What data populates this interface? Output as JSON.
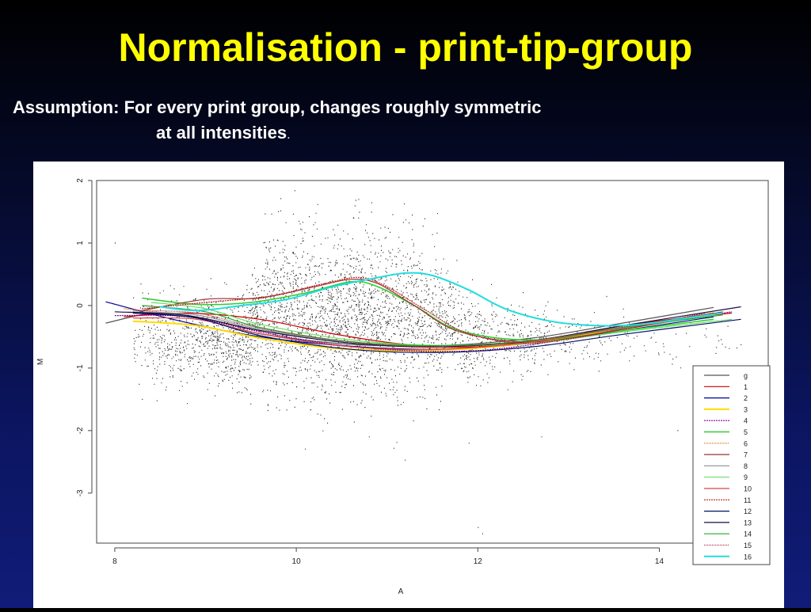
{
  "slide": {
    "title": "Normalisation - print-tip-group",
    "assumption_label": "Assumption:",
    "assumption_line1": "For every print group, changes roughly symmetric",
    "assumption_line2": "at all intensities",
    "assumption_period": "."
  },
  "colors": {
    "title": "#ffff00",
    "text": "#ffffff",
    "background": "#0b1560",
    "plot_background": "#ffffff"
  },
  "chart_data": {
    "type": "scatter",
    "title": "",
    "xlabel": "A",
    "ylabel": "M",
    "xlim": [
      7.8,
      15.2
    ],
    "ylim": [
      -3.8,
      2.0
    ],
    "x_ticks": [
      8,
      10,
      12,
      14
    ],
    "y_ticks": [
      -3,
      -2,
      -1,
      0,
      1,
      2
    ],
    "grid": false,
    "legend_placement": "bottom-right",
    "point_cloud": "approximately 4000 (A, M) spots, densest around A 9–12 and M -1 to 1",
    "series": [
      {
        "name": "g",
        "color": "#555555",
        "dash": "",
        "width": 1.2,
        "points": [
          [
            7.9,
            -0.28
          ],
          [
            8.6,
            -0.12
          ],
          [
            9.6,
            -0.45
          ],
          [
            10.6,
            -0.62
          ],
          [
            11.6,
            -0.64
          ],
          [
            12.6,
            -0.52
          ],
          [
            13.6,
            -0.28
          ],
          [
            14.6,
            -0.03
          ]
        ]
      },
      {
        "name": "1",
        "color": "#cc0000",
        "dash": "",
        "width": 1.2,
        "points": [
          [
            8.1,
            -0.18
          ],
          [
            8.8,
            -0.12
          ],
          [
            9.6,
            -0.22
          ],
          [
            10.4,
            -0.45
          ],
          [
            11.2,
            -0.62
          ],
          [
            12.0,
            -0.66
          ],
          [
            12.8,
            -0.52
          ],
          [
            13.8,
            -0.28
          ],
          [
            14.8,
            -0.12
          ]
        ]
      },
      {
        "name": "2",
        "color": "#000099",
        "dash": "",
        "width": 1.2,
        "points": [
          [
            7.9,
            0.06
          ],
          [
            8.7,
            -0.24
          ],
          [
            9.6,
            -0.5
          ],
          [
            10.6,
            -0.65
          ],
          [
            11.6,
            -0.7
          ],
          [
            12.6,
            -0.6
          ],
          [
            13.6,
            -0.4
          ],
          [
            14.6,
            -0.18
          ]
        ]
      },
      {
        "name": "3",
        "color": "#ffdd00",
        "dash": "",
        "width": 2.0,
        "points": [
          [
            8.2,
            -0.25
          ],
          [
            8.9,
            -0.32
          ],
          [
            9.6,
            -0.52
          ],
          [
            10.4,
            -0.68
          ],
          [
            11.2,
            -0.72
          ],
          [
            12.0,
            -0.68
          ],
          [
            12.8,
            -0.55
          ],
          [
            13.8,
            -0.32
          ],
          [
            14.6,
            -0.12
          ]
        ]
      },
      {
        "name": "4",
        "color": "#880088",
        "dash": "2,1",
        "width": 1.2,
        "points": [
          [
            8.0,
            -0.16
          ],
          [
            8.8,
            -0.18
          ],
          [
            9.6,
            -0.42
          ],
          [
            10.4,
            -0.62
          ],
          [
            11.2,
            -0.72
          ],
          [
            12.0,
            -0.72
          ],
          [
            12.8,
            -0.58
          ],
          [
            13.8,
            -0.32
          ],
          [
            14.8,
            -0.1
          ]
        ]
      },
      {
        "name": "5",
        "color": "#33cc33",
        "dash": "",
        "width": 1.6,
        "points": [
          [
            8.3,
            0.12
          ],
          [
            8.9,
            0.02
          ],
          [
            9.5,
            0.05
          ],
          [
            10.1,
            0.2
          ],
          [
            10.6,
            0.38
          ],
          [
            10.9,
            0.3
          ],
          [
            11.3,
            0.0
          ],
          [
            11.8,
            -0.4
          ],
          [
            12.6,
            -0.55
          ],
          [
            13.6,
            -0.4
          ],
          [
            14.6,
            -0.22
          ]
        ]
      },
      {
        "name": "6",
        "color": "#cc6600",
        "dash": "1,1",
        "width": 1.2,
        "points": [
          [
            8.1,
            -0.05
          ],
          [
            8.9,
            -0.18
          ],
          [
            9.6,
            -0.4
          ],
          [
            10.6,
            -0.6
          ],
          [
            11.6,
            -0.68
          ],
          [
            12.6,
            -0.6
          ],
          [
            13.6,
            -0.38
          ],
          [
            14.6,
            -0.15
          ]
        ]
      },
      {
        "name": "7",
        "color": "#993333",
        "dash": "",
        "width": 1.2,
        "points": [
          [
            8.3,
            -0.08
          ],
          [
            9.0,
            0.1
          ],
          [
            9.6,
            0.12
          ],
          [
            10.2,
            0.3
          ],
          [
            10.6,
            0.42
          ],
          [
            10.9,
            0.35
          ],
          [
            11.3,
            0.0
          ],
          [
            11.8,
            -0.42
          ],
          [
            12.6,
            -0.58
          ],
          [
            13.6,
            -0.38
          ],
          [
            14.7,
            -0.1
          ]
        ]
      },
      {
        "name": "8",
        "color": "#999999",
        "dash": "",
        "width": 1.2,
        "points": [
          [
            8.2,
            -0.1
          ],
          [
            8.9,
            -0.15
          ],
          [
            9.6,
            -0.38
          ],
          [
            10.6,
            -0.58
          ],
          [
            11.6,
            -0.64
          ],
          [
            12.6,
            -0.56
          ],
          [
            13.6,
            -0.36
          ],
          [
            14.6,
            -0.14
          ]
        ]
      },
      {
        "name": "9",
        "color": "#66dd66",
        "dash": "",
        "width": 1.2,
        "points": [
          [
            8.4,
            0.05
          ],
          [
            9.0,
            -0.05
          ],
          [
            9.6,
            -0.3
          ],
          [
            10.6,
            -0.55
          ],
          [
            11.6,
            -0.64
          ],
          [
            12.6,
            -0.6
          ],
          [
            13.6,
            -0.42
          ],
          [
            14.8,
            -0.22
          ]
        ]
      },
      {
        "name": "10",
        "color": "#dd4444",
        "dash": "",
        "width": 1.2,
        "points": [
          [
            8.2,
            -0.2
          ],
          [
            8.9,
            -0.22
          ],
          [
            9.6,
            -0.45
          ],
          [
            10.6,
            -0.66
          ],
          [
            11.6,
            -0.7
          ],
          [
            12.6,
            -0.58
          ],
          [
            13.6,
            -0.35
          ],
          [
            14.6,
            -0.12
          ]
        ]
      },
      {
        "name": "11",
        "color": "#bb2222",
        "dash": "2,1",
        "width": 1.2,
        "points": [
          [
            8.3,
            -0.05
          ],
          [
            9.0,
            0.05
          ],
          [
            9.7,
            0.15
          ],
          [
            10.3,
            0.35
          ],
          [
            10.7,
            0.45
          ],
          [
            11.0,
            0.3
          ],
          [
            11.4,
            -0.05
          ],
          [
            11.9,
            -0.45
          ],
          [
            12.6,
            -0.6
          ],
          [
            13.6,
            -0.38
          ],
          [
            14.5,
            -0.12
          ]
        ]
      },
      {
        "name": "12",
        "color": "#001166",
        "dash": "",
        "width": 1.2,
        "points": [
          [
            8.2,
            -0.12
          ],
          [
            8.9,
            -0.2
          ],
          [
            9.6,
            -0.48
          ],
          [
            10.6,
            -0.7
          ],
          [
            11.6,
            -0.75
          ],
          [
            12.6,
            -0.66
          ],
          [
            13.6,
            -0.46
          ],
          [
            14.9,
            -0.22
          ]
        ]
      },
      {
        "name": "13",
        "color": "#111144",
        "dash": "",
        "width": 1.2,
        "points": [
          [
            8.0,
            -0.1
          ],
          [
            8.8,
            -0.16
          ],
          [
            9.6,
            -0.4
          ],
          [
            10.6,
            -0.6
          ],
          [
            11.6,
            -0.66
          ],
          [
            12.6,
            -0.56
          ],
          [
            13.6,
            -0.32
          ],
          [
            14.9,
            -0.02
          ]
        ]
      },
      {
        "name": "14",
        "color": "#22aa22",
        "dash": "",
        "width": 1.2,
        "points": [
          [
            8.3,
            0.0
          ],
          [
            9.0,
            -0.1
          ],
          [
            9.6,
            -0.35
          ],
          [
            10.6,
            -0.58
          ],
          [
            11.6,
            -0.64
          ],
          [
            12.6,
            -0.56
          ],
          [
            13.6,
            -0.35
          ],
          [
            14.7,
            -0.15
          ]
        ]
      },
      {
        "name": "15",
        "color": "#aa3355",
        "dash": "1,1",
        "width": 1.2,
        "points": [
          [
            8.2,
            -0.08
          ],
          [
            8.9,
            -0.12
          ],
          [
            9.6,
            -0.36
          ],
          [
            10.6,
            -0.58
          ],
          [
            11.6,
            -0.66
          ],
          [
            12.6,
            -0.56
          ],
          [
            13.6,
            -0.34
          ],
          [
            14.6,
            -0.12
          ]
        ]
      },
      {
        "name": "16",
        "color": "#22dddd",
        "dash": "",
        "width": 2.0,
        "points": [
          [
            8.5,
            -0.02
          ],
          [
            8.9,
            -0.08
          ],
          [
            9.4,
            0.0
          ],
          [
            9.9,
            0.1
          ],
          [
            10.4,
            0.3
          ],
          [
            10.8,
            0.42
          ],
          [
            11.2,
            0.52
          ],
          [
            11.5,
            0.48
          ],
          [
            11.9,
            0.25
          ],
          [
            12.3,
            -0.05
          ],
          [
            12.8,
            -0.25
          ],
          [
            13.3,
            -0.32
          ],
          [
            13.8,
            -0.3
          ],
          [
            14.3,
            -0.2
          ],
          [
            14.7,
            -0.12
          ]
        ]
      }
    ]
  }
}
